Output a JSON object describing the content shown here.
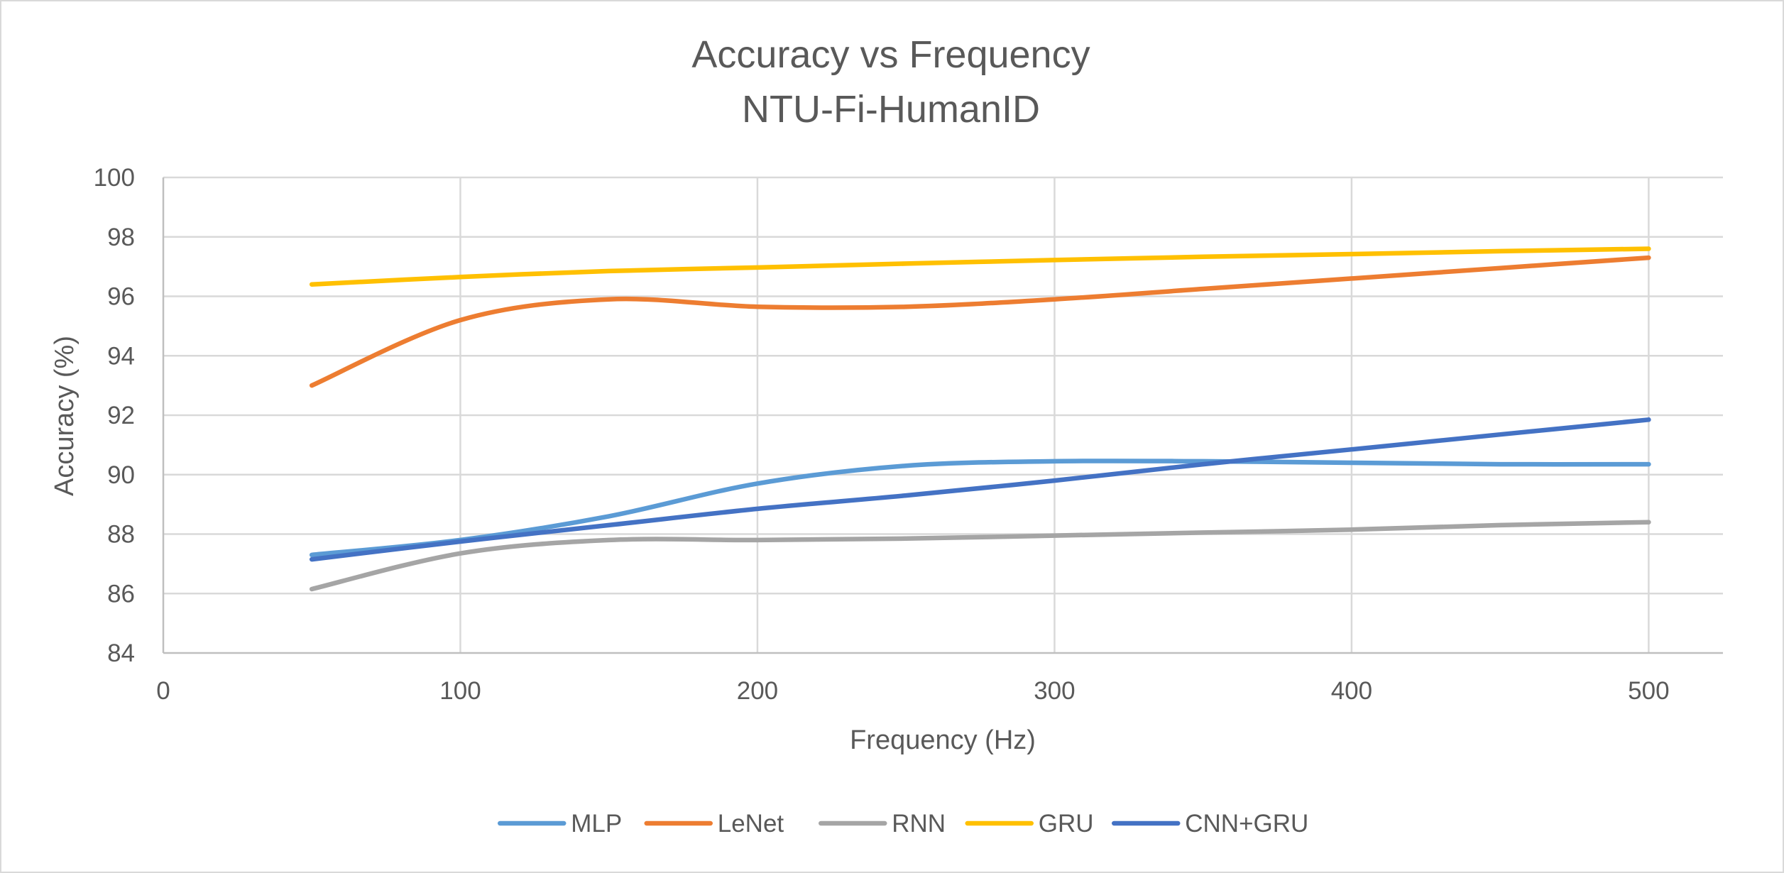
{
  "chart_data": {
    "type": "line",
    "title": "Accuracy vs Frequency",
    "subtitle": "NTU-Fi-HumanID",
    "xlabel": "Frequency (Hz)",
    "ylabel": "Accuracy (%)",
    "xlim": [
      0,
      525
    ],
    "ylim": [
      84,
      100
    ],
    "xticks": [
      0,
      100,
      200,
      300,
      400,
      500
    ],
    "yticks": [
      84,
      86,
      88,
      90,
      92,
      94,
      96,
      98,
      100
    ],
    "grid": true,
    "smooth": true,
    "legend_position": "bottom",
    "x": [
      50,
      100,
      150,
      200,
      250,
      300,
      350,
      400,
      450,
      500
    ],
    "series": [
      {
        "name": "MLP",
        "color": "#5B9BD5",
        "values": [
          87.3,
          87.8,
          88.6,
          89.7,
          90.3,
          90.45,
          90.45,
          90.4,
          90.35,
          90.35
        ]
      },
      {
        "name": "LeNet",
        "color": "#ED7D31",
        "values": [
          93.0,
          95.2,
          95.9,
          95.65,
          95.65,
          95.9,
          96.25,
          96.6,
          96.95,
          97.3
        ]
      },
      {
        "name": "RNN",
        "color": "#A5A5A5",
        "values": [
          86.15,
          87.35,
          87.8,
          87.8,
          87.85,
          87.95,
          88.05,
          88.15,
          88.3,
          88.4
        ]
      },
      {
        "name": "GRU",
        "color": "#FFC000",
        "values": [
          96.4,
          96.65,
          96.85,
          96.97,
          97.1,
          97.22,
          97.33,
          97.42,
          97.52,
          97.6
        ]
      },
      {
        "name": "CNN+GRU",
        "color": "#4472C4",
        "values": [
          87.15,
          87.75,
          88.3,
          88.85,
          89.3,
          89.8,
          90.35,
          90.85,
          91.35,
          91.85
        ]
      }
    ]
  }
}
